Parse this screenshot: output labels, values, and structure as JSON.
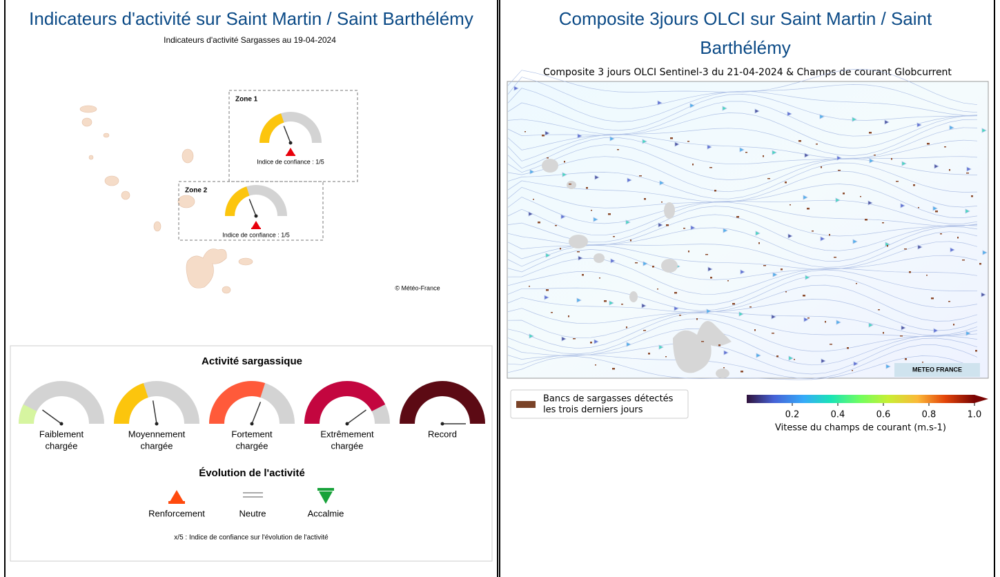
{
  "left": {
    "title": "Indicateurs d'activité sur Saint Martin / Saint Barthélémy",
    "map": {
      "title": "Indicateurs d'activité Sargasses au 19-04-2024",
      "zones": [
        {
          "name": "Zone 1",
          "confidence": "Indice de confiance : 1/5"
        },
        {
          "name": "Zone 2",
          "confidence": "Indice de confiance : 1/5"
        }
      ],
      "credit": "© Météo-France"
    },
    "legend": {
      "title": "Activité sargassique",
      "levels": [
        {
          "lines": [
            "Faiblement",
            "chargée"
          ]
        },
        {
          "lines": [
            "Moyennement",
            "chargée"
          ]
        },
        {
          "lines": [
            "Fortement",
            "chargée"
          ]
        },
        {
          "lines": [
            "Extrêmement",
            "chargée"
          ]
        },
        {
          "lines": [
            "Record"
          ]
        }
      ],
      "evolution_title": "Évolution de l'activité",
      "evolution": [
        "Renforcement",
        "Neutre",
        "Accalmie"
      ],
      "note": "x/5 : Indice de confiance sur l'évolution de l'activité"
    }
  },
  "right": {
    "title_lines": [
      "Composite 3jours OLCI sur Saint Martin / Saint",
      "Barthélémy"
    ],
    "subtitle": "Composite 3 jours OLCI Sentinel-3 du 21-04-2024 & Champs de courant Globcurrent",
    "logo": "METEO FRANCE",
    "legend_lines": [
      "Bancs de sargasses détectés",
      "les trois derniers jours"
    ],
    "colorbar_ticks": [
      "0.2",
      "0.4",
      "0.6",
      "0.8",
      "1.0"
    ],
    "colorbar_label": "Vitesse du champs de courant (m.s-1)"
  }
}
